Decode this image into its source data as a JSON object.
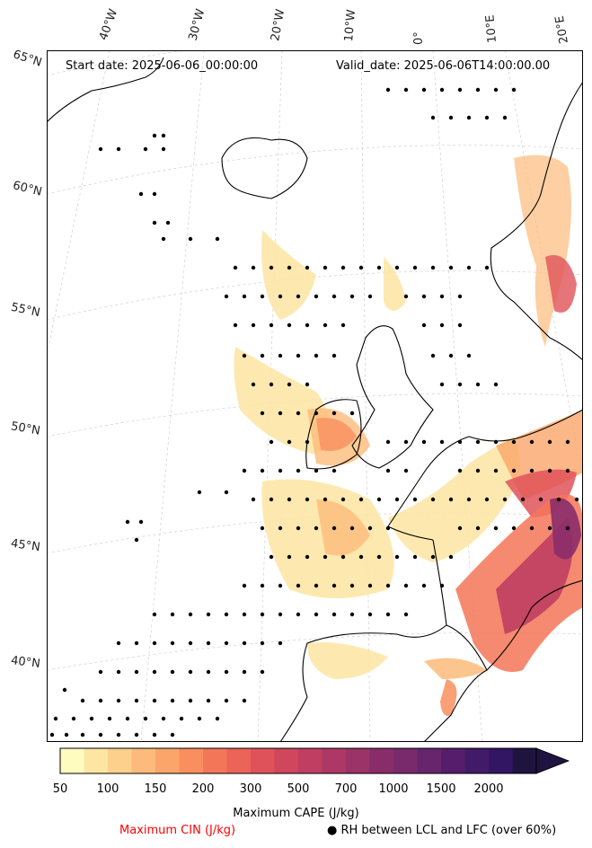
{
  "header": {
    "start_date": "Start date: 2025-06-06_00:00:00",
    "valid_date": "Valid_date: 2025-06-06T14:00:00.00"
  },
  "lat_labels": [
    "65°N",
    "60°N",
    "55°N",
    "50°N",
    "45°N",
    "40°N"
  ],
  "lon_labels": [
    "40°W",
    "30°W",
    "20°W",
    "10°W",
    "0°",
    "10°E",
    "20°E"
  ],
  "colorbar": {
    "title": "Maximum CAPE (J/kg)",
    "ticks": [
      "50",
      "100",
      "150",
      "200",
      "300",
      "500",
      "700",
      "1000",
      "1500",
      "2000"
    ],
    "colors": [
      "#fffcc0",
      "#fde5a2",
      "#fdd08c",
      "#fcbb7a",
      "#fba56a",
      "#f98e5e",
      "#f47658",
      "#ec6357",
      "#e05259",
      "#d0465d",
      "#c03e61",
      "#ad3865",
      "#9b3268",
      "#892c6a",
      "#782a6c",
      "#67256c",
      "#551d6c",
      "#431a69",
      "#321663",
      "#1f1340"
    ]
  },
  "legend": {
    "cin_label": "Maximum CIN (J/kg)",
    "cin_color": "#ff0000",
    "rh_symbol": "●",
    "rh_label": "RH between LCL and LFC (over 60%)"
  }
}
